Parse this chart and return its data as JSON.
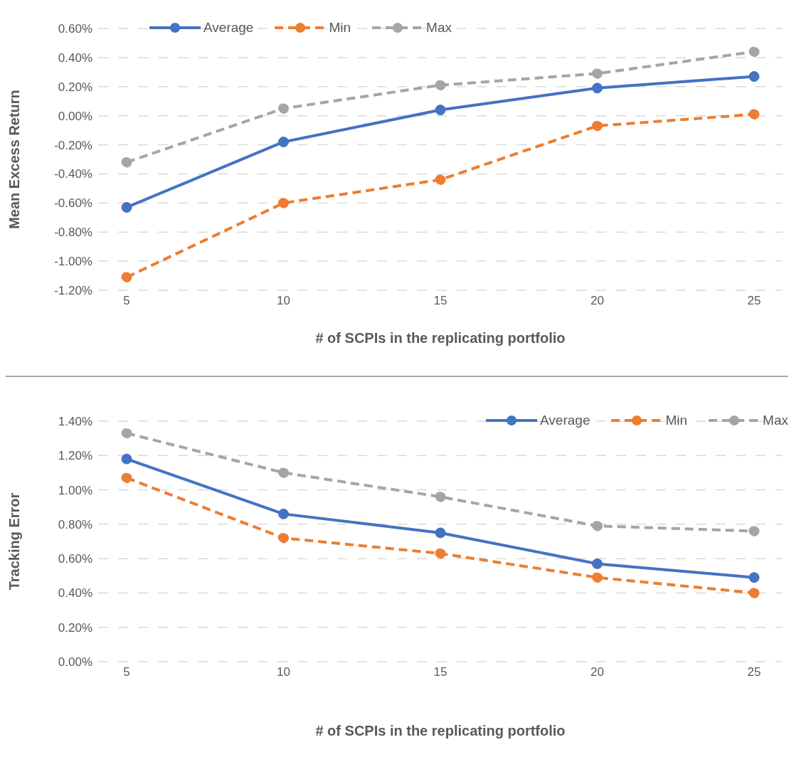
{
  "chart_data": [
    {
      "type": "line",
      "xlabel": "# of SCPIs in the replicating portfolio",
      "ylabel": "Mean Excess Return",
      "categories": [
        "5",
        "10",
        "15",
        "20",
        "25"
      ],
      "series": [
        {
          "name": "Average",
          "color": "#4472c4",
          "line_style": "solid",
          "values": [
            -0.63,
            -0.18,
            0.04,
            0.19,
            0.27
          ]
        },
        {
          "name": "Min",
          "color": "#ed7d31",
          "line_style": "dashed",
          "values": [
            -1.11,
            -0.6,
            -0.44,
            -0.07,
            0.01
          ]
        },
        {
          "name": "Max",
          "color": "#a5a5a5",
          "line_style": "dashed",
          "values": [
            -0.32,
            0.05,
            0.21,
            0.29,
            0.44
          ]
        }
      ],
      "ylim": [
        -1.2,
        0.6
      ],
      "yticks": [
        {
          "value": -1.2,
          "label": "-1.20%"
        },
        {
          "value": -1.0,
          "label": "-1.00%"
        },
        {
          "value": -0.8,
          "label": "-0.80%"
        },
        {
          "value": -0.6,
          "label": "-0.60%"
        },
        {
          "value": -0.4,
          "label": "-0.40%"
        },
        {
          "value": -0.2,
          "label": "-0.20%"
        },
        {
          "value": 0,
          "label": "0.00%"
        },
        {
          "value": 0.2,
          "label": "0.20%"
        },
        {
          "value": 0.4,
          "label": "0.40%"
        },
        {
          "value": 0.6,
          "label": "0.60%"
        }
      ],
      "grid": "y",
      "legend": "top left",
      "marker": "circle"
    },
    {
      "type": "line",
      "xlabel": "# of SCPIs in the replicating portfolio",
      "ylabel": "Tracking Error",
      "categories": [
        "5",
        "10",
        "15",
        "20",
        "25"
      ],
      "series": [
        {
          "name": "Average",
          "color": "#4472c4",
          "line_style": "solid",
          "values": [
            1.18,
            0.86,
            0.75,
            0.57,
            0.49
          ]
        },
        {
          "name": "Min",
          "color": "#ed7d31",
          "line_style": "dashed",
          "values": [
            1.07,
            0.72,
            0.63,
            0.49,
            0.4
          ]
        },
        {
          "name": "Max",
          "color": "#a5a5a5",
          "line_style": "dashed",
          "values": [
            1.33,
            1.1,
            0.96,
            0.79,
            0.76
          ]
        }
      ],
      "ylim": [
        0,
        1.4
      ],
      "yticks": [
        {
          "value": 0,
          "label": "0.00%"
        },
        {
          "value": 0.2,
          "label": "0.20%"
        },
        {
          "value": 0.4,
          "label": "0.40%"
        },
        {
          "value": 0.6,
          "label": "0.60%"
        },
        {
          "value": 0.8,
          "label": "0.80%"
        },
        {
          "value": 1.0,
          "label": "1.00%"
        },
        {
          "value": 1.2,
          "label": "1.20%"
        },
        {
          "value": 1.4,
          "label": "1.40%"
        }
      ],
      "grid": "y",
      "legend": "top right",
      "marker": "circle"
    }
  ]
}
